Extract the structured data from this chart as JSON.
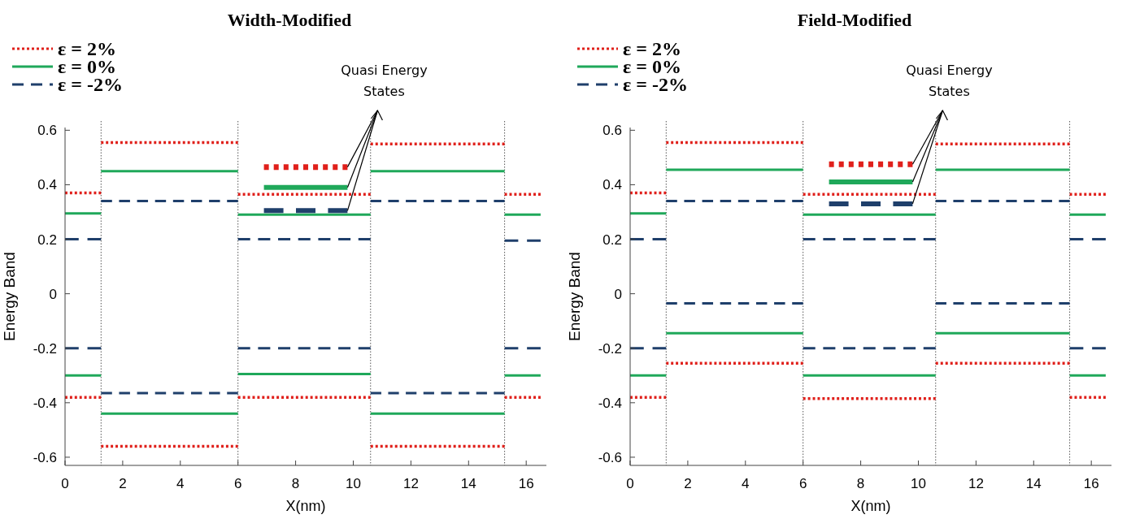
{
  "chart_data": [
    {
      "type": "line",
      "title": "Width-Modified",
      "xlabel": "X(nm)",
      "ylabel": "Energy Band",
      "xlim": [
        0,
        16.7
      ],
      "ylim": [
        -0.63,
        0.61
      ],
      "xticks": [
        0,
        2,
        4,
        6,
        8,
        10,
        12,
        14,
        16
      ],
      "yticks": [
        -0.6,
        -0.4,
        -0.2,
        0,
        0.2,
        0.4,
        0.6
      ],
      "grid": false,
      "legend": "top left",
      "marker": "none",
      "annotations": [
        {
          "text": "Quasi Energy States",
          "x": 9.8,
          "y": 0.465
        }
      ],
      "ref_lines": [
        {
          "axis": "x",
          "value": 1.25,
          "color": "#555555",
          "line_style": "dotted"
        },
        {
          "axis": "x",
          "value": 6,
          "color": "#555555",
          "line_style": "dotted"
        },
        {
          "axis": "x",
          "value": 10.6,
          "color": "#555555",
          "line_style": "dotted"
        },
        {
          "axis": "x",
          "value": 15.25,
          "color": "#555555",
          "line_style": "dotted"
        }
      ],
      "series": [
        {
          "name": "ε = 2%",
          "color": "#e0201b",
          "line_style": "dotted",
          "x": [
            0,
            1.25
          ],
          "values": [
            0.37,
            0.37
          ]
        },
        {
          "name": "ε = 0%",
          "color": "#1fa85a",
          "line_style": "solid",
          "x": [
            0,
            1.25
          ],
          "values": [
            0.295,
            0.295
          ]
        },
        {
          "name": "ε = -2%",
          "color": "#1f3f6b",
          "line_style": "dashed",
          "x": [
            0,
            1.25
          ],
          "values": [
            0.2,
            0.2
          ]
        },
        {
          "color": "#e0201b",
          "line_style": "dotted",
          "x": [
            1.25,
            6
          ],
          "values": [
            0.555,
            0.555
          ]
        },
        {
          "color": "#e0201b",
          "line_style": "dotted",
          "x": [
            6,
            10.6
          ],
          "values": [
            0.365,
            0.365
          ]
        },
        {
          "color": "#e0201b",
          "line_style": "dotted",
          "x": [
            10.6,
            15.25
          ],
          "values": [
            0.55,
            0.55
          ]
        },
        {
          "color": "#e0201b",
          "line_style": "dotted",
          "x": [
            15.25,
            16.5
          ],
          "values": [
            0.365,
            0.365
          ]
        },
        {
          "color": "#1fa85a",
          "line_style": "solid",
          "x": [
            1.25,
            6
          ],
          "values": [
            0.45,
            0.45
          ]
        },
        {
          "color": "#1fa85a",
          "line_style": "solid",
          "x": [
            6,
            10.6
          ],
          "values": [
            0.29,
            0.29
          ]
        },
        {
          "color": "#1fa85a",
          "line_style": "solid",
          "x": [
            10.6,
            15.25
          ],
          "values": [
            0.45,
            0.45
          ]
        },
        {
          "color": "#1fa85a",
          "line_style": "solid",
          "x": [
            15.25,
            16.5
          ],
          "values": [
            0.29,
            0.29
          ]
        },
        {
          "color": "#1f3f6b",
          "line_style": "dashed",
          "x": [
            1.25,
            6
          ],
          "values": [
            0.34,
            0.34
          ]
        },
        {
          "color": "#1f3f6b",
          "line_style": "dashed",
          "x": [
            6,
            10.6
          ],
          "values": [
            0.2,
            0.2
          ]
        },
        {
          "color": "#1f3f6b",
          "line_style": "dashed",
          "x": [
            10.6,
            15.25
          ],
          "values": [
            0.34,
            0.34
          ]
        },
        {
          "color": "#1f3f6b",
          "line_style": "dashed",
          "x": [
            15.25,
            16.5
          ],
          "values": [
            0.195,
            0.195
          ]
        },
        {
          "color": "#e0201b",
          "line_style": "dotted",
          "x": [
            0,
            1.25
          ],
          "values": [
            -0.38,
            -0.38
          ]
        },
        {
          "color": "#e0201b",
          "line_style": "dotted",
          "x": [
            1.25,
            6
          ],
          "values": [
            -0.56,
            -0.56
          ]
        },
        {
          "color": "#e0201b",
          "line_style": "dotted",
          "x": [
            6,
            10.6
          ],
          "values": [
            -0.38,
            -0.38
          ]
        },
        {
          "color": "#e0201b",
          "line_style": "dotted",
          "x": [
            10.6,
            15.25
          ],
          "values": [
            -0.56,
            -0.56
          ]
        },
        {
          "color": "#e0201b",
          "line_style": "dotted",
          "x": [
            15.25,
            16.5
          ],
          "values": [
            -0.38,
            -0.38
          ]
        },
        {
          "color": "#1fa85a",
          "line_style": "solid",
          "x": [
            0,
            1.25
          ],
          "values": [
            -0.3,
            -0.3
          ]
        },
        {
          "color": "#1fa85a",
          "line_style": "solid",
          "x": [
            1.25,
            6
          ],
          "values": [
            -0.44,
            -0.44
          ]
        },
        {
          "color": "#1fa85a",
          "line_style": "solid",
          "x": [
            6,
            10.6
          ],
          "values": [
            -0.295,
            -0.295
          ]
        },
        {
          "color": "#1fa85a",
          "line_style": "solid",
          "x": [
            10.6,
            15.25
          ],
          "values": [
            -0.44,
            -0.44
          ]
        },
        {
          "color": "#1fa85a",
          "line_style": "solid",
          "x": [
            15.25,
            16.5
          ],
          "values": [
            -0.3,
            -0.3
          ]
        },
        {
          "color": "#1f3f6b",
          "line_style": "dashed",
          "x": [
            0,
            1.25
          ],
          "values": [
            -0.2,
            -0.2
          ]
        },
        {
          "color": "#1f3f6b",
          "line_style": "dashed",
          "x": [
            1.25,
            6
          ],
          "values": [
            -0.365,
            -0.365
          ]
        },
        {
          "color": "#1f3f6b",
          "line_style": "dashed",
          "x": [
            6,
            10.6
          ],
          "values": [
            -0.2,
            -0.2
          ]
        },
        {
          "color": "#1f3f6b",
          "line_style": "dashed",
          "x": [
            10.6,
            15.25
          ],
          "values": [
            -0.365,
            -0.365
          ]
        },
        {
          "color": "#1f3f6b",
          "line_style": "dashed",
          "x": [
            15.25,
            16.5
          ],
          "values": [
            -0.2,
            -0.2
          ]
        },
        {
          "color": "#e0201b",
          "line_style": "dotted",
          "x": [
            6.9,
            9.8
          ],
          "values": [
            0.465,
            0.465
          ]
        },
        {
          "color": "#1fa85a",
          "line_style": "solid",
          "x": [
            6.9,
            9.8
          ],
          "values": [
            0.39,
            0.39
          ]
        },
        {
          "color": "#1f3f6b",
          "line_style": "dashed",
          "x": [
            6.9,
            9.8
          ],
          "values": [
            0.305,
            0.305
          ]
        }
      ]
    },
    {
      "type": "line",
      "title": "Field-Modified",
      "xlabel": "X(nm)",
      "ylabel": "Energy Band",
      "xlim": [
        0,
        16.7
      ],
      "ylim": [
        -0.63,
        0.61
      ],
      "xticks": [
        0,
        2,
        4,
        6,
        8,
        10,
        12,
        14,
        16
      ],
      "yticks": [
        -0.6,
        -0.4,
        -0.2,
        0,
        0.2,
        0.4,
        0.6
      ],
      "grid": false,
      "legend": "top left",
      "marker": "none",
      "annotations": [
        {
          "text": "Quasi Energy States",
          "x": 9.8,
          "y": 0.475
        }
      ],
      "ref_lines": [
        {
          "axis": "x",
          "value": 1.25,
          "color": "#555555",
          "line_style": "dotted"
        },
        {
          "axis": "x",
          "value": 6,
          "color": "#555555",
          "line_style": "dotted"
        },
        {
          "axis": "x",
          "value": 10.6,
          "color": "#555555",
          "line_style": "dotted"
        },
        {
          "axis": "x",
          "value": 15.25,
          "color": "#555555",
          "line_style": "dotted"
        }
      ],
      "series": [
        {
          "name": "ε = 2%",
          "color": "#e0201b",
          "line_style": "dotted",
          "x": [
            0,
            1.25
          ],
          "values": [
            0.37,
            0.37
          ]
        },
        {
          "name": "ε = 0%",
          "color": "#1fa85a",
          "line_style": "solid",
          "x": [
            0,
            1.25
          ],
          "values": [
            0.295,
            0.295
          ]
        },
        {
          "name": "ε = -2%",
          "color": "#1f3f6b",
          "line_style": "dashed",
          "x": [
            0,
            1.25
          ],
          "values": [
            0.2,
            0.2
          ]
        },
        {
          "color": "#e0201b",
          "line_style": "dotted",
          "x": [
            1.25,
            6
          ],
          "values": [
            0.555,
            0.555
          ]
        },
        {
          "color": "#e0201b",
          "line_style": "dotted",
          "x": [
            6,
            10.6
          ],
          "values": [
            0.365,
            0.365
          ]
        },
        {
          "color": "#e0201b",
          "line_style": "dotted",
          "x": [
            10.6,
            15.25
          ],
          "values": [
            0.55,
            0.55
          ]
        },
        {
          "color": "#e0201b",
          "line_style": "dotted",
          "x": [
            15.25,
            16.5
          ],
          "values": [
            0.365,
            0.365
          ]
        },
        {
          "color": "#1fa85a",
          "line_style": "solid",
          "x": [
            1.25,
            6
          ],
          "values": [
            0.455,
            0.455
          ]
        },
        {
          "color": "#1fa85a",
          "line_style": "solid",
          "x": [
            6,
            10.6
          ],
          "values": [
            0.29,
            0.29
          ]
        },
        {
          "color": "#1fa85a",
          "line_style": "solid",
          "x": [
            10.6,
            15.25
          ],
          "values": [
            0.455,
            0.455
          ]
        },
        {
          "color": "#1fa85a",
          "line_style": "solid",
          "x": [
            15.25,
            16.5
          ],
          "values": [
            0.29,
            0.29
          ]
        },
        {
          "color": "#1f3f6b",
          "line_style": "dashed",
          "x": [
            1.25,
            6
          ],
          "values": [
            0.34,
            0.34
          ]
        },
        {
          "color": "#1f3f6b",
          "line_style": "dashed",
          "x": [
            6,
            10.6
          ],
          "values": [
            0.2,
            0.2
          ]
        },
        {
          "color": "#1f3f6b",
          "line_style": "dashed",
          "x": [
            10.6,
            15.25
          ],
          "values": [
            0.34,
            0.34
          ]
        },
        {
          "color": "#1f3f6b",
          "line_style": "dashed",
          "x": [
            15.25,
            16.5
          ],
          "values": [
            0.2,
            0.2
          ]
        },
        {
          "color": "#e0201b",
          "line_style": "dotted",
          "x": [
            0,
            1.25
          ],
          "values": [
            -0.38,
            -0.38
          ]
        },
        {
          "color": "#e0201b",
          "line_style": "dotted",
          "x": [
            1.25,
            6
          ],
          "values": [
            -0.255,
            -0.255
          ]
        },
        {
          "color": "#e0201b",
          "line_style": "dotted",
          "x": [
            6,
            10.6
          ],
          "values": [
            -0.385,
            -0.385
          ]
        },
        {
          "color": "#e0201b",
          "line_style": "dotted",
          "x": [
            10.6,
            15.25
          ],
          "values": [
            -0.255,
            -0.255
          ]
        },
        {
          "color": "#e0201b",
          "line_style": "dotted",
          "x": [
            15.25,
            16.5
          ],
          "values": [
            -0.38,
            -0.38
          ]
        },
        {
          "color": "#1fa85a",
          "line_style": "solid",
          "x": [
            0,
            1.25
          ],
          "values": [
            -0.3,
            -0.3
          ]
        },
        {
          "color": "#1fa85a",
          "line_style": "solid",
          "x": [
            1.25,
            6
          ],
          "values": [
            -0.145,
            -0.145
          ]
        },
        {
          "color": "#1fa85a",
          "line_style": "solid",
          "x": [
            6,
            10.6
          ],
          "values": [
            -0.3,
            -0.3
          ]
        },
        {
          "color": "#1fa85a",
          "line_style": "solid",
          "x": [
            10.6,
            15.25
          ],
          "values": [
            -0.145,
            -0.145
          ]
        },
        {
          "color": "#1fa85a",
          "line_style": "solid",
          "x": [
            15.25,
            16.5
          ],
          "values": [
            -0.3,
            -0.3
          ]
        },
        {
          "color": "#1f3f6b",
          "line_style": "dashed",
          "x": [
            0,
            1.25
          ],
          "values": [
            -0.2,
            -0.2
          ]
        },
        {
          "color": "#1f3f6b",
          "line_style": "dashed",
          "x": [
            1.25,
            6
          ],
          "values": [
            -0.035,
            -0.035
          ]
        },
        {
          "color": "#1f3f6b",
          "line_style": "dashed",
          "x": [
            6,
            10.6
          ],
          "values": [
            -0.2,
            -0.2
          ]
        },
        {
          "color": "#1f3f6b",
          "line_style": "dashed",
          "x": [
            10.6,
            15.25
          ],
          "values": [
            -0.035,
            -0.035
          ]
        },
        {
          "color": "#1f3f6b",
          "line_style": "dashed",
          "x": [
            15.25,
            16.5
          ],
          "values": [
            -0.2,
            -0.2
          ]
        },
        {
          "color": "#e0201b",
          "line_style": "dotted",
          "x": [
            6.9,
            9.8
          ],
          "values": [
            0.475,
            0.475
          ]
        },
        {
          "color": "#1fa85a",
          "line_style": "solid",
          "x": [
            6.9,
            9.8
          ],
          "values": [
            0.41,
            0.41
          ]
        },
        {
          "color": "#1f3f6b",
          "line_style": "dashed",
          "x": [
            6.9,
            9.8
          ],
          "values": [
            0.33,
            0.33
          ]
        }
      ]
    }
  ]
}
